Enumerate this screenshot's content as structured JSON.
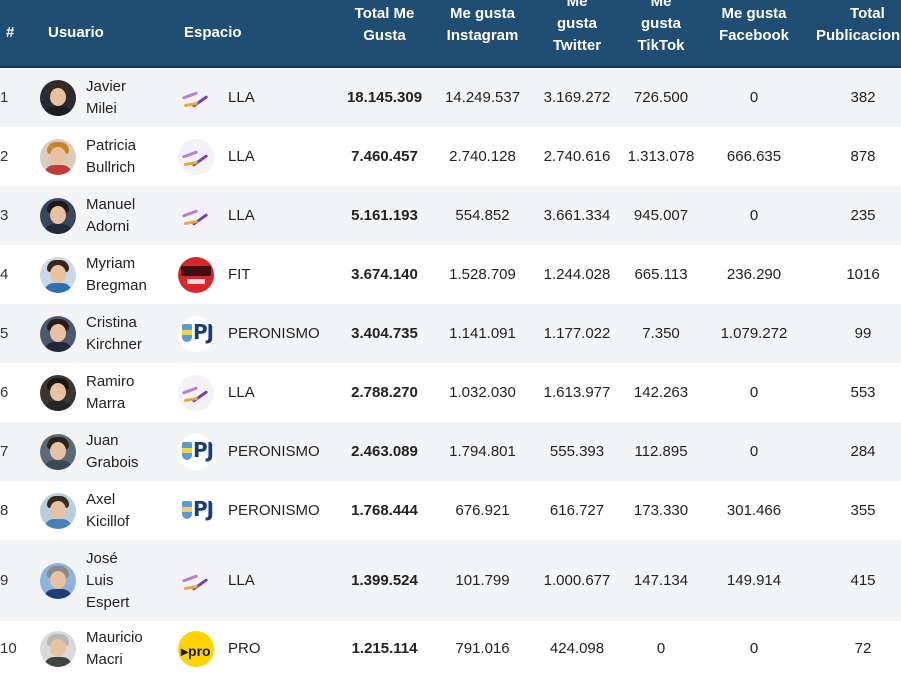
{
  "headers": {
    "rank": "#",
    "user": "Usuario",
    "space": "Espacio",
    "total_likes": [
      "Total Me",
      "Gusta"
    ],
    "instagram": [
      "Me gusta",
      "Instagram"
    ],
    "twitter": [
      "Me",
      "gusta",
      "Twitter"
    ],
    "tiktok": [
      "Me",
      "gusta",
      "TikTok"
    ],
    "facebook": [
      "Me gusta",
      "Facebook"
    ],
    "posts": [
      "Total",
      "Publicaciones"
    ]
  },
  "rows": [
    {
      "rank": "1",
      "name": [
        "Javier",
        "Milei"
      ],
      "party": "LLA",
      "logo": "lla",
      "avatar": {
        "hair": "#3b2a20",
        "body": "#1d1d24",
        "bg": "#2b2b33"
      },
      "total": "18.145.309",
      "instagram": "14.249.537",
      "twitter": "3.169.272",
      "tiktok": "726.500",
      "facebook": "0",
      "posts": "382"
    },
    {
      "rank": "2",
      "name": [
        "Patricia",
        "Bullrich"
      ],
      "party": "LLA",
      "logo": "lla",
      "avatar": {
        "hair": "#c9822e",
        "body": "#c23b3b",
        "bg": "#d8cdbd"
      },
      "total": "7.460.457",
      "instagram": "2.740.128",
      "twitter": "2.740.616",
      "tiktok": "1.313.078",
      "facebook": "666.635",
      "posts": "878"
    },
    {
      "rank": "3",
      "name": [
        "Manuel",
        "Adorni"
      ],
      "party": "LLA",
      "logo": "lla",
      "avatar": {
        "hair": "#1f1a18",
        "body": "#20283a",
        "bg": "#3a4660"
      },
      "total": "5.161.193",
      "instagram": "554.852",
      "twitter": "3.661.334",
      "tiktok": "945.007",
      "facebook": "0",
      "posts": "235"
    },
    {
      "rank": "4",
      "name": [
        "Myriam",
        "Bregman"
      ],
      "party": "FIT",
      "logo": "fit",
      "avatar": {
        "hair": "#3b2418",
        "body": "#2f6fb4",
        "bg": "#c9d7e8"
      },
      "total": "3.674.140",
      "instagram": "1.528.709",
      "twitter": "1.244.028",
      "tiktok": "665.113",
      "facebook": "236.290",
      "posts": "1016"
    },
    {
      "rank": "5",
      "name": [
        "Cristina",
        "Kirchner"
      ],
      "party": "PERONISMO",
      "logo": "pj",
      "avatar": {
        "hair": "#2a1e18",
        "body": "#23263a",
        "bg": "#4c5870"
      },
      "total": "3.404.735",
      "instagram": "1.141.091",
      "twitter": "1.177.022",
      "tiktok": "7.350",
      "facebook": "1.079.272",
      "posts": "99"
    },
    {
      "rank": "6",
      "name": [
        "Ramiro",
        "Marra"
      ],
      "party": "LLA",
      "logo": "lla",
      "avatar": {
        "hair": "#1c1713",
        "body": "#262626",
        "bg": "#3a3530"
      },
      "total": "2.788.270",
      "instagram": "1.032.030",
      "twitter": "1.613.977",
      "tiktok": "142.263",
      "facebook": "0",
      "posts": "553"
    },
    {
      "rank": "7",
      "name": [
        "Juan",
        "Grabois"
      ],
      "party": "PERONISMO",
      "logo": "pj",
      "avatar": {
        "hair": "#2e241c",
        "body": "#3b4a5a",
        "bg": "#5a6a78"
      },
      "total": "2.463.089",
      "instagram": "1.794.801",
      "twitter": "555.393",
      "tiktok": "112.895",
      "facebook": "0",
      "posts": "284"
    },
    {
      "rank": "8",
      "name": [
        "Axel",
        "Kicillof"
      ],
      "party": "PERONISMO",
      "logo": "pj",
      "avatar": {
        "hair": "#3a2a20",
        "body": "#4a7fb8",
        "bg": "#b9cde2"
      },
      "total": "1.768.444",
      "instagram": "676.921",
      "twitter": "616.727",
      "tiktok": "173.330",
      "facebook": "301.466",
      "posts": "355"
    },
    {
      "rank": "9",
      "name": [
        "José",
        "Luis",
        "Espert"
      ],
      "party": "LLA",
      "logo": "lla",
      "avatar": {
        "hair": "#8a8a8a",
        "body": "#1f3f78",
        "bg": "#8fb3da"
      },
      "total": "1.399.524",
      "instagram": "101.799",
      "twitter": "1.000.677",
      "tiktok": "147.134",
      "facebook": "149.914",
      "posts": "415"
    },
    {
      "rank": "10",
      "name": [
        "Mauricio",
        "Macri"
      ],
      "party": "PRO",
      "logo": "pro",
      "avatar": {
        "hair": "#b7b7b7",
        "body": "#444444",
        "bg": "#d9d9d9"
      },
      "total": "1.215.114",
      "instagram": "791.016",
      "twitter": "424.098",
      "tiktok": "0",
      "facebook": "0",
      "posts": "72"
    }
  ]
}
